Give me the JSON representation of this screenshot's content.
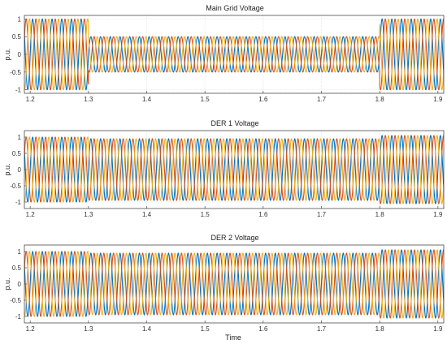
{
  "chart_data": [
    {
      "type": "line",
      "title": "Main Grid Voltage",
      "xlabel": "",
      "ylabel": "p.u.",
      "xlim": [
        1.19,
        1.91
      ],
      "ylim": [
        -1.1,
        1.1
      ],
      "x_ticks": [
        "1.2",
        "1.3",
        "1.4",
        "1.5",
        "1.6",
        "1.7",
        "1.8",
        "1.9"
      ],
      "y_ticks": [
        "1",
        "0.5",
        "0",
        "-0.5",
        "-1"
      ],
      "grid": true,
      "frequency_hz": 60,
      "series_colors": [
        "#0072BD",
        "#D95319",
        "#EDB120"
      ],
      "phase_deg": [
        0,
        -120,
        120
      ],
      "amplitude_segments": [
        {
          "t_start": 1.19,
          "t_end": 1.3,
          "amplitude": 1.0
        },
        {
          "t_start": 1.3,
          "t_end": 1.8,
          "amplitude": 0.5
        },
        {
          "t_start": 1.8,
          "t_end": 1.91,
          "amplitude": 1.0
        }
      ]
    },
    {
      "type": "line",
      "title": "DER 1 Voltage",
      "xlabel": "",
      "ylabel": "p.u.",
      "xlim": [
        1.19,
        1.91
      ],
      "ylim": [
        -1.2,
        1.2
      ],
      "x_ticks": [
        "1.2",
        "1.3",
        "1.4",
        "1.5",
        "1.6",
        "1.7",
        "1.8",
        "1.9"
      ],
      "y_ticks": [
        "1",
        "0.5",
        "0",
        "-0.5",
        "-1"
      ],
      "grid": true,
      "frequency_hz": 60,
      "series_colors": [
        "#0072BD",
        "#D95319",
        "#EDB120"
      ],
      "phase_deg": [
        0,
        -120,
        120
      ],
      "amplitude_segments": [
        {
          "t_start": 1.19,
          "t_end": 1.3,
          "amplitude": 1.0
        },
        {
          "t_start": 1.3,
          "t_end": 1.8,
          "amplitude": 0.95
        },
        {
          "t_start": 1.8,
          "t_end": 1.91,
          "amplitude": 1.05
        }
      ]
    },
    {
      "type": "line",
      "title": "DER 2 Voltage",
      "xlabel": "Time",
      "ylabel": "p.u.",
      "xlim": [
        1.19,
        1.91
      ],
      "ylim": [
        -1.2,
        1.2
      ],
      "x_ticks": [
        "1.2",
        "1.3",
        "1.4",
        "1.5",
        "1.6",
        "1.7",
        "1.8",
        "1.9"
      ],
      "y_ticks": [
        "1",
        "0.5",
        "0",
        "-0.5",
        "-1"
      ],
      "grid": true,
      "frequency_hz": 60,
      "series_colors": [
        "#0072BD",
        "#D95319",
        "#EDB120"
      ],
      "phase_deg": [
        0,
        -120,
        120
      ],
      "amplitude_segments": [
        {
          "t_start": 1.19,
          "t_end": 1.3,
          "amplitude": 1.0
        },
        {
          "t_start": 1.3,
          "t_end": 1.8,
          "amplitude": 0.95
        },
        {
          "t_start": 1.8,
          "t_end": 1.91,
          "amplitude": 1.05
        }
      ]
    }
  ]
}
